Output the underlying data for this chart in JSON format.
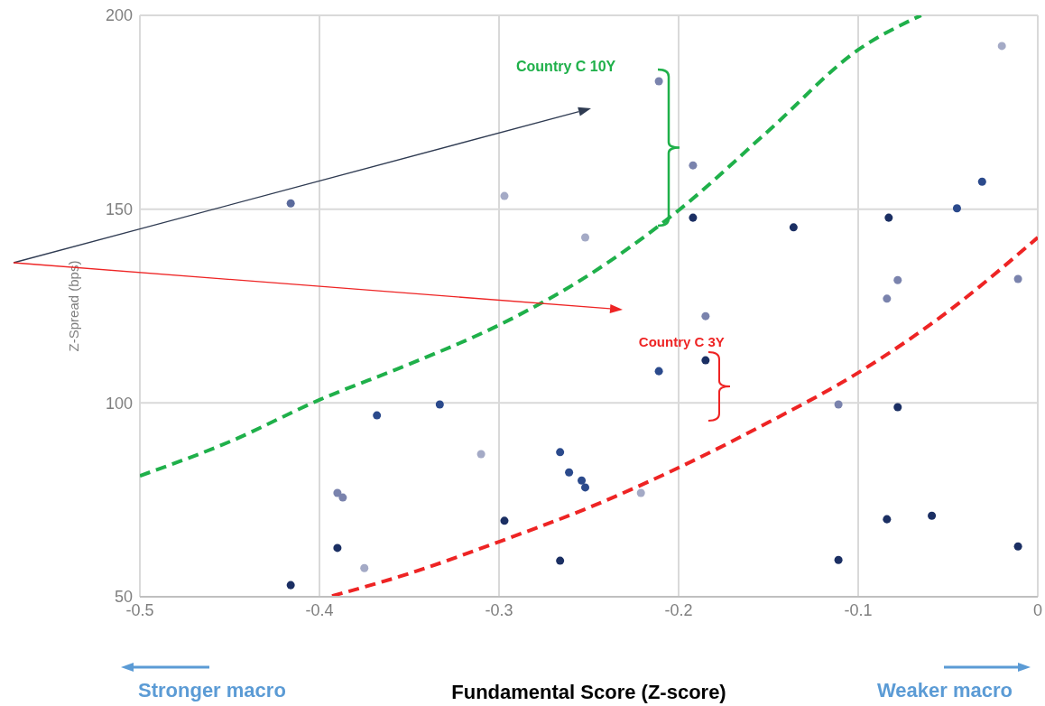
{
  "chart_data": {
    "type": "scatter",
    "xlabel": "Fundamental Score (Z-score)",
    "ylabel": "Z-Spread (bps)",
    "xlim": [
      -0.5,
      0
    ],
    "xticks": [
      -0.5,
      -0.4,
      -0.3,
      -0.2,
      -0.1,
      0
    ],
    "ylim": [
      50,
      200
    ],
    "yticks": [
      50,
      100,
      150,
      200
    ],
    "grid": true,
    "legend": false,
    "annotations": [
      "Country C 10Y",
      {
        "text": "Country C 3Y",
        "x": -0.185,
        "y": 111
      },
      "Stronger macro",
      "Weaker macro"
    ],
    "series": [
      {
        "marker": "circle",
        "x": [
          -0.416,
          -0.416,
          -0.39,
          -0.39,
          -0.387,
          -0.375,
          -0.368,
          -0.333,
          -0.31,
          -0.297,
          -0.297,
          -0.266,
          -0.266,
          -0.261,
          -0.254,
          -0.252,
          -0.252,
          -0.221,
          -0.211,
          -0.211,
          -0.192,
          -0.192,
          -0.185,
          -0.185,
          -0.136,
          -0.111,
          -0.111,
          -0.084,
          -0.084,
          -0.083,
          -0.078,
          -0.078,
          -0.059,
          -0.045,
          -0.031,
          -0.02,
          -0.011,
          -0.011
        ],
        "values": [
          53,
          151.5,
          62.6,
          76.8,
          75.6,
          57.4,
          96.8,
          99.6,
          86.8,
          69.6,
          153.4,
          59.3,
          87.3,
          82.1,
          80,
          78.2,
          142.7,
          76.8,
          108.2,
          183,
          147.8,
          161.3,
          111,
          122.4,
          145.3,
          59.5,
          99.6,
          126.9,
          70,
          147.8,
          131.7,
          98.9,
          70.9,
          150.2,
          157.1,
          192.1,
          63,
          132
        ],
        "colors": [
          "#1b2f63",
          "#5a6a9c",
          "#1b2f63",
          "#7a83ad",
          "#7a83ad",
          "#a4aac6",
          "#2b4a8c",
          "#2b4a8c",
          "#a4aac6",
          "#1b2f63",
          "#a4aac6",
          "#1b2f63",
          "#2b4a8c",
          "#2b4a8c",
          "#2b4a8c",
          "#2b4a8c",
          "#a4aac6",
          "#a4aac6",
          "#2b4a8c",
          "#7a83ad",
          "#1b2f63",
          "#7a83ad",
          "#1b2f63",
          "#7a83ad",
          "#1b2f63",
          "#1b2f63",
          "#7a83ad",
          "#7a83ad",
          "#1b2f63",
          "#1b2f63",
          "#7a83ad",
          "#1b2f63",
          "#1b2f63",
          "#2b4a8c",
          "#2b4a8c",
          "#a4aac6",
          "#1b2f63",
          "#7a83ad"
        ]
      },
      {
        "type": "line",
        "marker": "none",
        "color": "#1fb04a",
        "line_style": "dashed",
        "x": [
          -0.5,
          -0.45,
          -0.4,
          -0.35,
          -0.3,
          -0.25,
          -0.2,
          -0.15,
          -0.1,
          -0.065
        ],
        "values": [
          81.2,
          90,
          100.8,
          110,
          120.1,
          133,
          149.7,
          170.2,
          191.1,
          200
        ]
      },
      {
        "type": "line",
        "marker": "none",
        "color": "#ee2424",
        "line_style": "dashed",
        "x": [
          -0.393,
          -0.35,
          -0.3,
          -0.25,
          -0.2,
          -0.15,
          -0.1,
          -0.05,
          0
        ],
        "values": [
          50.2,
          56,
          64.2,
          73,
          83.3,
          95,
          107.8,
          123.6,
          142.7
        ]
      }
    ]
  }
}
